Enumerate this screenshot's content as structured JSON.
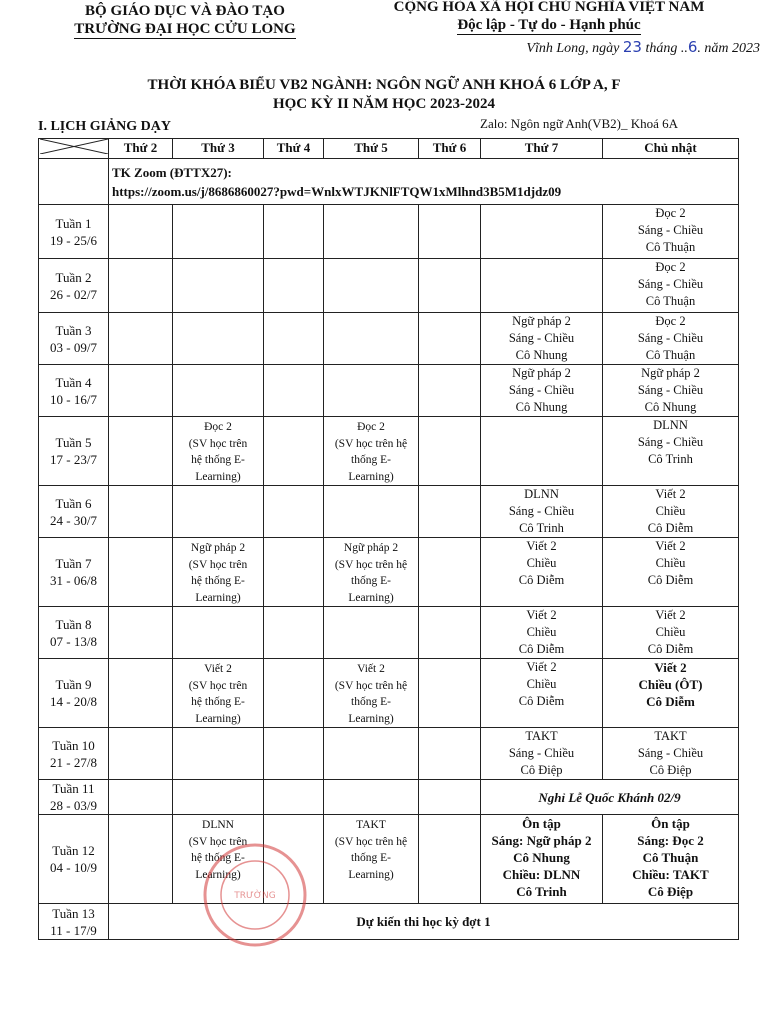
{
  "header": {
    "ministry": "BỘ GIÁO DỤC VÀ ĐÀO TẠO",
    "school": "TRƯỜNG ĐẠI HỌC CỬU LONG",
    "republic": "CỘNG HÒA XÃ HỘI CHỦ NGHĨA VIỆT NAM",
    "motto": "Độc lập - Tự do - Hạnh phúc",
    "date_prefix": "Vĩnh Long, ngày",
    "day": "23",
    "month_label": "tháng ..",
    "month": "6",
    "year_label": ". năm 2023"
  },
  "title": {
    "line1": "THỜI KHÓA BIỂU VB2 NGÀNH: NGÔN NGỮ ANH KHOÁ 6 LỚP A, F",
    "line2": "HỌC KỲ II NĂM HỌC 2023-2024"
  },
  "section": "I. LỊCH GIẢNG DẠY",
  "zalo": "Zalo: Ngôn ngữ Anh(VB2)_ Khoá 6A",
  "columns": [
    "Thứ 2",
    "Thứ 3",
    "Thứ 4",
    "Thứ 5",
    "Thứ 6",
    "Thứ 7",
    "Chủ nhật"
  ],
  "zoom": {
    "label": "TK Zoom (ĐTTX27):",
    "link": "https://zoom.us/j/8686860027?pwd=WnlxWTJKNlFTQW1xMlhnd3B5M1djdz09"
  },
  "weeks": [
    {
      "name": "Tuần 1",
      "range": "19 - 25/6",
      "cells": [
        "",
        "",
        "",
        "",
        "",
        "",
        "Đọc 2\nSáng - Chiều\nCô Thuận"
      ]
    },
    {
      "name": "Tuần 2",
      "range": "26 - 02/7",
      "cells": [
        "",
        "",
        "",
        "",
        "",
        "",
        "Đọc 2\nSáng - Chiều\nCô Thuận"
      ]
    },
    {
      "name": "Tuần 3",
      "range": "03 - 09/7",
      "cells": [
        "",
        "",
        "",
        "",
        "",
        "Ngữ pháp 2\nSáng - Chiều\nCô Nhung",
        "Đọc 2\nSáng - Chiều\nCô Thuận"
      ]
    },
    {
      "name": "Tuần 4",
      "range": "10 - 16/7",
      "cells": [
        "",
        "",
        "",
        "",
        "",
        "Ngữ pháp 2\nSáng - Chiều\nCô Nhung",
        "Ngữ pháp 2\nSáng - Chiều\nCô Nhung"
      ]
    },
    {
      "name": "Tuần 5",
      "range": "17 - 23/7",
      "cells": [
        "",
        "Đọc 2\n(SV học trên\nhệ thống E-\nLearning)",
        "",
        "Đọc 2\n(SV học trên hệ\nthống E-\nLearning)",
        "",
        "",
        "DLNN\nSáng - Chiều\nCô Trinh"
      ]
    },
    {
      "name": "Tuần 6",
      "range": "24 - 30/7",
      "cells": [
        "",
        "",
        "",
        "",
        "",
        "DLNN\nSáng - Chiều\nCô Trinh",
        "Viết 2\nChiều\nCô Diễm"
      ]
    },
    {
      "name": "Tuần 7",
      "range": "31 - 06/8",
      "cells": [
        "",
        "Ngữ pháp 2\n(SV học trên\nhệ thống E-\nLearning)",
        "",
        "Ngữ pháp 2\n(SV học trên hệ\nthống E-\nLearning)",
        "",
        "Viết 2\nChiều\nCô Diễm",
        "Viết 2\nChiều\nCô Diễm"
      ]
    },
    {
      "name": "Tuần 8",
      "range": "07 - 13/8",
      "cells": [
        "",
        "",
        "",
        "",
        "",
        "Viết 2\nChiều\nCô Diễm",
        "Viết 2\nChiều\nCô Diễm"
      ]
    },
    {
      "name": "Tuần 9",
      "range": "14 - 20/8",
      "cells": [
        "",
        "Viết 2\n(SV học trên\nhệ thống E-\nLearning)",
        "",
        "Viết 2\n(SV học trên hệ\nthống E-\nLearning)",
        "",
        "Viết 2\nChiều\nCô Diễm",
        "Viết 2\nChiều (ÔT)\nCô Diễm"
      ]
    },
    {
      "name": "Tuần 10",
      "range": "21 - 27/8",
      "cells": [
        "",
        "",
        "",
        "",
        "",
        "TAKT\nSáng - Chiều\nCô Điệp",
        "TAKT\nSáng - Chiều\nCô Điệp"
      ]
    }
  ],
  "week11": {
    "name": "Tuần 11",
    "range": "28 - 03/9",
    "holiday": "Nghỉ Lễ Quốc Khánh 02/9"
  },
  "week12": {
    "name": "Tuần 12",
    "range": "04 - 10/9",
    "cells": [
      "",
      "DLNN\n(SV học trên\nhệ thống E-\nLearning)",
      "",
      "TAKT\n(SV học trên hệ\nthống E-\nLearning)",
      "",
      "Ôn tập\nSáng: Ngữ pháp 2\nCô Nhung\nChiều: DLNN\nCô Trinh",
      "Ôn tập\nSáng: Đọc 2\nCô Thuận\nChiều: TAKT\nCô Điệp"
    ]
  },
  "week13": {
    "name": "Tuần 13",
    "range": "11 - 17/9",
    "note": "Dự kiến thi học kỳ đợt 1"
  },
  "stamp_text": "TRƯỜNG ĐẠI HỌC CỬU LONG",
  "colors": {
    "ink": "#111111",
    "handwriting": "#2a3fb0",
    "stamp": "#d23a3a"
  }
}
